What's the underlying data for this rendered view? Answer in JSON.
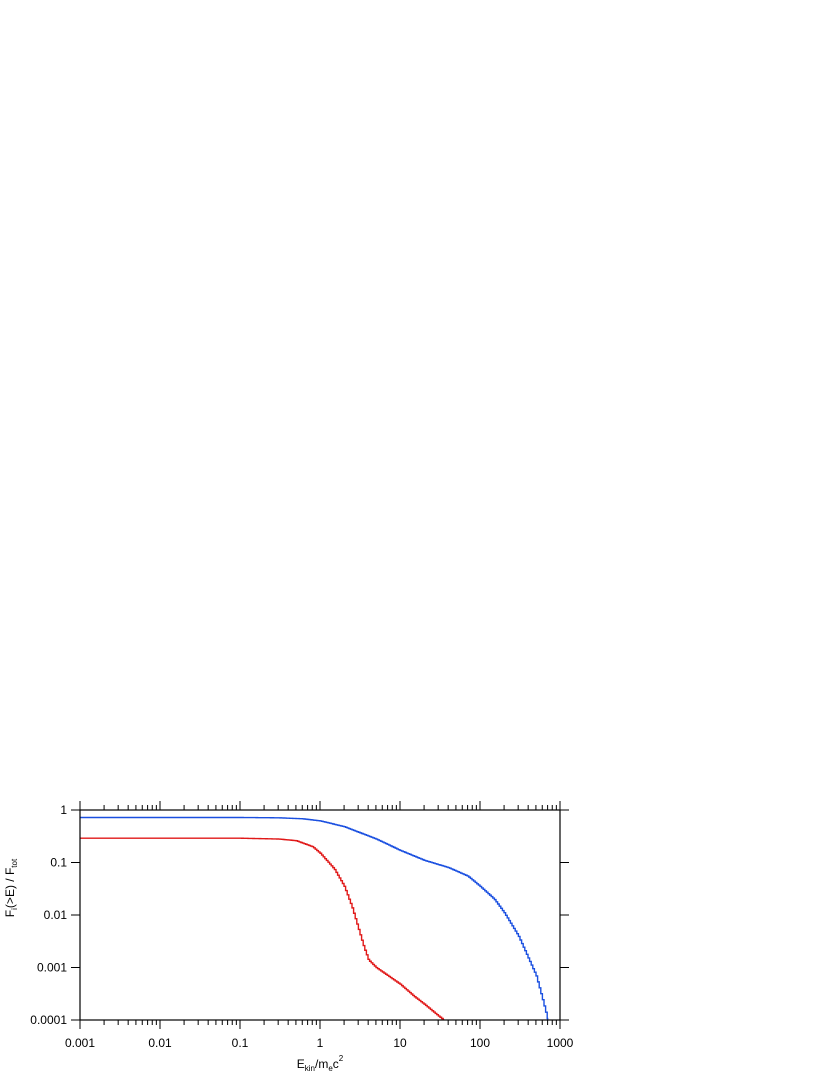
{
  "chart_data": {
    "type": "line",
    "xscale": "log",
    "yscale": "log",
    "xlim": [
      0.001,
      1000
    ],
    "ylim": [
      0.0001,
      1
    ],
    "x_ticks": [
      0.001,
      0.01,
      0.1,
      1,
      10,
      100,
      1000
    ],
    "x_tick_labels": [
      "0.001",
      "0.01",
      "0.1",
      "1",
      "10",
      "100",
      "1000"
    ],
    "y_ticks": [
      1,
      0.1,
      0.01,
      0.001,
      0.0001
    ],
    "y_tick_labels": [
      "1",
      "0.1",
      "0.01",
      "0.001",
      "0.0001"
    ],
    "xlabel": {
      "main": "E",
      "sub": "kin",
      "mid": "/m",
      "sub2": "e",
      "end": "c",
      "sup": "2"
    },
    "ylabel": {
      "main": "F",
      "sub": "i",
      "mid": "(>E) / F",
      "sub2": "tot"
    },
    "grid": false,
    "line_style": "step",
    "series": [
      {
        "color": "#1a4fe0",
        "x": [
          0.001,
          0.01,
          0.1,
          0.3,
          0.6,
          1,
          2,
          5,
          10,
          20,
          40,
          70,
          100,
          150,
          200,
          300,
          400,
          500,
          600,
          700
        ],
        "y": [
          0.72,
          0.72,
          0.72,
          0.71,
          0.68,
          0.62,
          0.48,
          0.28,
          0.17,
          0.11,
          0.08,
          0.055,
          0.035,
          0.02,
          0.011,
          0.004,
          0.0015,
          0.0007,
          0.00025,
          0.0001
        ]
      },
      {
        "color": "#e01818",
        "x": [
          0.001,
          0.01,
          0.1,
          0.3,
          0.5,
          0.8,
          1,
          1.5,
          2,
          2.5,
          3,
          3.5,
          4,
          5,
          7,
          10,
          15,
          20,
          30,
          35
        ],
        "y": [
          0.29,
          0.29,
          0.29,
          0.28,
          0.26,
          0.2,
          0.15,
          0.075,
          0.035,
          0.014,
          0.0055,
          0.0025,
          0.0014,
          0.001,
          0.0007,
          0.00048,
          0.00028,
          0.0002,
          0.00012,
          0.0001
        ]
      }
    ]
  }
}
